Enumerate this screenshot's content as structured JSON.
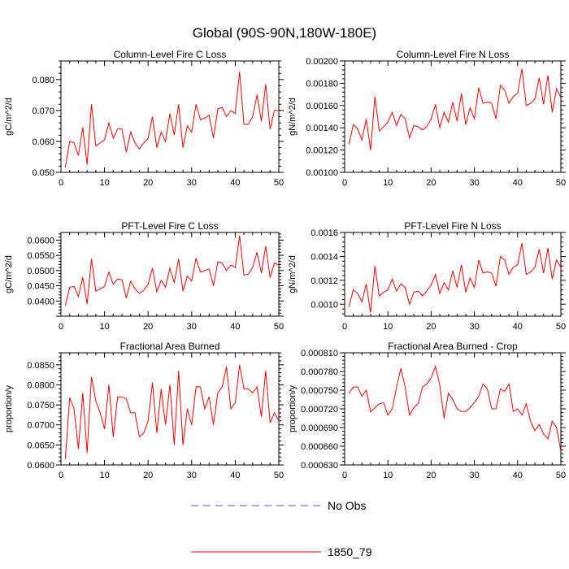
{
  "page": {
    "title": "Global (90S-90N,180W-180E)"
  },
  "legend": {
    "items": [
      {
        "label": "No Obs",
        "style": "dashed",
        "color": "#5a5ac8"
      },
      {
        "label": "1850_79",
        "style": "solid",
        "color": "#ff0000"
      }
    ]
  },
  "chart_data": [
    {
      "type": "line",
      "title": "Column-Level Fire C Loss",
      "ylabel": "gC/m^2/d",
      "xlim": [
        0,
        50
      ],
      "ylim": [
        0.05,
        0.086
      ],
      "yticks": [
        0.05,
        0.06,
        0.07,
        0.08
      ],
      "ytick_labels": [
        "0.050",
        "0.060",
        "0.070",
        "0.080"
      ],
      "xticks": [
        0,
        10,
        20,
        30,
        40,
        50
      ],
      "xtick_labels": [
        "0",
        "10",
        "20",
        "30",
        "40",
        "50"
      ],
      "series": [
        {
          "name": "1850_79",
          "color": "#ff0000",
          "x": [
            1,
            2,
            3,
            4,
            5,
            6,
            7,
            8,
            9,
            10,
            11,
            12,
            13,
            14,
            15,
            16,
            17,
            18,
            19,
            20,
            21,
            22,
            23,
            24,
            25,
            26,
            27,
            28,
            29,
            30,
            31,
            32,
            33,
            34,
            35,
            36,
            37,
            38,
            39,
            40,
            41,
            42,
            43,
            44,
            45,
            46,
            47,
            48,
            49,
            50
          ],
          "values": [
            0.0515,
            0.06,
            0.0595,
            0.0555,
            0.0645,
            0.0525,
            0.072,
            0.0585,
            0.0595,
            0.0605,
            0.066,
            0.061,
            0.064,
            0.064,
            0.0565,
            0.063,
            0.0595,
            0.0575,
            0.0595,
            0.061,
            0.068,
            0.058,
            0.063,
            0.06,
            0.069,
            0.062,
            0.072,
            0.058,
            0.065,
            0.063,
            0.072,
            0.067,
            0.0675,
            0.0685,
            0.061,
            0.0705,
            0.071,
            0.068,
            0.07,
            0.069,
            0.0825,
            0.0655,
            0.0655,
            0.068,
            0.075,
            0.0665,
            0.0785,
            0.064,
            0.07,
            0.07
          ]
        }
      ]
    },
    {
      "type": "line",
      "title": "Column-Level Fire N Loss",
      "ylabel": "gN/m^2/d",
      "xlim": [
        0,
        50
      ],
      "ylim": [
        0.001,
        0.002
      ],
      "yticks": [
        0.001,
        0.0012,
        0.0014,
        0.0016,
        0.0018,
        0.002
      ],
      "ytick_labels": [
        "0.00100",
        "0.00120",
        "0.00140",
        "0.00160",
        "0.00180",
        "0.00200"
      ],
      "xticks": [
        0,
        10,
        20,
        30,
        40,
        50
      ],
      "xtick_labels": [
        "0",
        "10",
        "20",
        "30",
        "40",
        "50"
      ],
      "series": [
        {
          "name": "1850_79",
          "color": "#ff0000",
          "x": [
            1,
            2,
            3,
            4,
            5,
            6,
            7,
            8,
            9,
            10,
            11,
            12,
            13,
            14,
            15,
            16,
            17,
            18,
            19,
            20,
            21,
            22,
            23,
            24,
            25,
            26,
            27,
            28,
            29,
            30,
            31,
            32,
            33,
            34,
            35,
            36,
            37,
            38,
            39,
            40,
            41,
            42,
            43,
            44,
            45,
            46,
            47,
            48,
            49,
            50
          ],
          "values": [
            0.00125,
            0.00143,
            0.00139,
            0.00129,
            0.00148,
            0.0012,
            0.00168,
            0.00137,
            0.00141,
            0.00145,
            0.00154,
            0.00142,
            0.00152,
            0.00148,
            0.00131,
            0.00142,
            0.00141,
            0.00138,
            0.00141,
            0.00148,
            0.00161,
            0.0014,
            0.00154,
            0.00145,
            0.00163,
            0.00146,
            0.00171,
            0.00143,
            0.00158,
            0.00148,
            0.00176,
            0.00162,
            0.00163,
            0.00162,
            0.00148,
            0.00178,
            0.00174,
            0.00162,
            0.00168,
            0.00171,
            0.00193,
            0.0016,
            0.00162,
            0.00166,
            0.00185,
            0.00161,
            0.00187,
            0.00154,
            0.00175,
            0.00167
          ]
        }
      ]
    },
    {
      "type": "line",
      "title": "PFT-Level Fire C Loss",
      "ylabel": "gC/m^2/d",
      "xlim": [
        0,
        50
      ],
      "ylim": [
        0.035,
        0.0625
      ],
      "yticks": [
        0.04,
        0.045,
        0.05,
        0.055,
        0.06
      ],
      "ytick_labels": [
        "0.0400",
        "0.0450",
        "0.0500",
        "0.0550",
        "0.0600"
      ],
      "xticks": [
        0,
        10,
        20,
        30,
        40,
        50
      ],
      "xtick_labels": [
        "0",
        "10",
        "20",
        "30",
        "40",
        "50"
      ],
      "series": [
        {
          "name": "1850_79",
          "color": "#ff0000",
          "x": [
            1,
            2,
            3,
            4,
            5,
            6,
            7,
            8,
            9,
            10,
            11,
            12,
            13,
            14,
            15,
            16,
            17,
            18,
            19,
            20,
            21,
            22,
            23,
            24,
            25,
            26,
            27,
            28,
            29,
            30,
            31,
            32,
            33,
            34,
            35,
            36,
            37,
            38,
            39,
            40,
            41,
            42,
            43,
            44,
            45,
            46,
            47,
            48,
            49,
            50
          ],
          "values": [
            0.0385,
            0.0445,
            0.0448,
            0.0415,
            0.0478,
            0.039,
            0.0538,
            0.0432,
            0.044,
            0.0448,
            0.0495,
            0.0455,
            0.0472,
            0.047,
            0.041,
            0.0465,
            0.044,
            0.0425,
            0.0435,
            0.0455,
            0.0508,
            0.043,
            0.0468,
            0.0445,
            0.0508,
            0.046,
            0.0538,
            0.0432,
            0.0482,
            0.0465,
            0.054,
            0.0495,
            0.05,
            0.0505,
            0.045,
            0.0528,
            0.0525,
            0.05,
            0.0518,
            0.051,
            0.0615,
            0.0485,
            0.0488,
            0.051,
            0.056,
            0.0492,
            0.058,
            0.0478,
            0.0525,
            0.0518
          ]
        }
      ]
    },
    {
      "type": "line",
      "title": "PFT-Level Fire N Loss",
      "ylabel": "gN/m^2/d",
      "xlim": [
        0,
        50
      ],
      "ylim": [
        0.0009,
        0.0016
      ],
      "yticks": [
        0.001,
        0.0012,
        0.0014,
        0.0016
      ],
      "ytick_labels": [
        "0.0010",
        "0.0012",
        "0.0014",
        "0.0016"
      ],
      "xticks": [
        0,
        10,
        20,
        30,
        40,
        50
      ],
      "xtick_labels": [
        "0",
        "10",
        "20",
        "30",
        "40",
        "50"
      ],
      "series": [
        {
          "name": "1850_79",
          "color": "#ff0000",
          "x": [
            1,
            2,
            3,
            4,
            5,
            6,
            7,
            8,
            9,
            10,
            11,
            12,
            13,
            14,
            15,
            16,
            17,
            18,
            19,
            20,
            21,
            22,
            23,
            24,
            25,
            26,
            27,
            28,
            29,
            30,
            31,
            32,
            33,
            34,
            35,
            36,
            37,
            38,
            39,
            40,
            41,
            42,
            43,
            44,
            45,
            46,
            47,
            48,
            49,
            50
          ],
          "values": [
            0.00098,
            0.00112,
            0.00109,
            0.00102,
            0.00117,
            0.00093,
            0.00132,
            0.00107,
            0.0011,
            0.00112,
            0.00121,
            0.00111,
            0.00117,
            0.00114,
            0.001,
            0.0011,
            0.00111,
            0.00107,
            0.00111,
            0.00116,
            0.00125,
            0.00109,
            0.00118,
            0.00112,
            0.00128,
            0.00114,
            0.00133,
            0.0011,
            0.00122,
            0.00114,
            0.00137,
            0.00126,
            0.00127,
            0.00126,
            0.00115,
            0.0014,
            0.00137,
            0.00125,
            0.00131,
            0.00133,
            0.00151,
            0.00125,
            0.00127,
            0.00131,
            0.00146,
            0.00126,
            0.00147,
            0.00121,
            0.00137,
            0.00131
          ]
        }
      ]
    },
    {
      "type": "line",
      "title": "Fractional Area Burned",
      "ylabel": "proportion/y",
      "xlim": [
        0,
        50
      ],
      "ylim": [
        0.06,
        0.088
      ],
      "yticks": [
        0.06,
        0.065,
        0.07,
        0.075,
        0.08,
        0.085
      ],
      "ytick_labels": [
        "0.0600",
        "0.0650",
        "0.0700",
        "0.0750",
        "0.0800",
        "0.0850"
      ],
      "xticks": [
        0,
        10,
        20,
        30,
        40,
        50
      ],
      "xtick_labels": [
        "0",
        "10",
        "20",
        "30",
        "40",
        "50"
      ],
      "series": [
        {
          "name": "1850_79",
          "color": "#ff0000",
          "x": [
            1,
            2,
            3,
            4,
            5,
            6,
            7,
            8,
            9,
            10,
            11,
            12,
            13,
            14,
            15,
            16,
            17,
            18,
            19,
            20,
            21,
            22,
            23,
            24,
            25,
            26,
            27,
            28,
            29,
            30,
            31,
            32,
            33,
            34,
            35,
            36,
            37,
            38,
            39,
            40,
            41,
            42,
            43,
            44,
            45,
            46,
            47,
            48,
            49,
            50
          ],
          "values": [
            0.0615,
            0.0768,
            0.074,
            0.064,
            0.078,
            0.063,
            0.082,
            0.076,
            0.073,
            0.069,
            0.08,
            0.067,
            0.077,
            0.077,
            0.0765,
            0.073,
            0.073,
            0.067,
            0.068,
            0.071,
            0.0805,
            0.068,
            0.079,
            0.07,
            0.08,
            0.065,
            0.0835,
            0.065,
            0.074,
            0.07,
            0.0795,
            0.0795,
            0.074,
            0.077,
            0.07,
            0.078,
            0.0795,
            0.0845,
            0.074,
            0.0755,
            0.085,
            0.079,
            0.079,
            0.078,
            0.0795,
            0.072,
            0.0835,
            0.0705,
            0.073,
            0.071
          ]
        }
      ]
    },
    {
      "type": "line",
      "title": "Fractional Area Burned - Crop",
      "ylabel": "proportion/y",
      "xlim": [
        0,
        50
      ],
      "ylim": [
        0.00063,
        0.00081
      ],
      "yticks": [
        0.00063,
        0.00066,
        0.00069,
        0.00072,
        0.00075,
        0.00078,
        0.00081
      ],
      "ytick_labels": [
        "0.000630",
        "0.000660",
        "0.000690",
        "0.000720",
        "0.000750",
        "0.000780",
        "0.000810"
      ],
      "xticks": [
        0,
        10,
        20,
        30,
        40,
        50
      ],
      "xtick_labels": [
        "0",
        "10",
        "20",
        "30",
        "40",
        "50"
      ],
      "series": [
        {
          "name": "1850_79",
          "color": "#ff0000",
          "x": [
            1,
            2,
            3,
            4,
            5,
            6,
            7,
            8,
            9,
            10,
            11,
            12,
            13,
            14,
            15,
            16,
            17,
            18,
            19,
            20,
            21,
            22,
            23,
            24,
            25,
            26,
            27,
            28,
            29,
            30,
            31,
            32,
            33,
            34,
            35,
            36,
            37,
            38,
            39,
            40,
            41,
            42,
            43,
            44,
            45,
            46,
            47,
            48,
            49,
            50
          ],
          "values": [
            0.000745,
            0.000755,
            0.000755,
            0.00074,
            0.00075,
            0.000715,
            0.000722,
            0.000728,
            0.00073,
            0.00071,
            0.00072,
            0.000755,
            0.000785,
            0.000755,
            0.00071,
            0.000722,
            0.000728,
            0.000755,
            0.00076,
            0.00077,
            0.000788,
            0.000758,
            0.000705,
            0.000745,
            0.000735,
            0.00072,
            0.000716,
            0.000716,
            0.000722,
            0.00073,
            0.00074,
            0.00076,
            0.000752,
            0.00072,
            0.00072,
            0.000752,
            0.000748,
            0.00076,
            0.000716,
            0.00072,
            0.00071,
            0.000728,
            0.0007,
            0.000685,
            0.000695,
            0.00068,
            0.000672,
            0.0007,
            0.00069,
            0.000652
          ]
        }
      ]
    }
  ]
}
